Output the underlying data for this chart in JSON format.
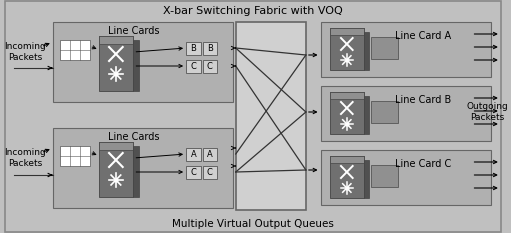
{
  "bg_color": "#c0c0c0",
  "title_top": "X-bar Switching Fabric with VOQ",
  "title_bottom": "Multiple Virtual Output Queues",
  "title_fontsize": 8,
  "label_fontsize": 7,
  "small_fontsize": 6,
  "line_card_labels": [
    "Line Cards",
    "Line Cards"
  ],
  "output_labels": [
    "Line Card A",
    "Line Card B",
    "Line Card C"
  ],
  "incoming_labels": [
    "Incoming\nPackets",
    "Incoming\nPackets"
  ],
  "outgoing_label": "Outgoing\nPackets",
  "outer_box_color": "#b8b8b8",
  "dark_box_color": "#808080",
  "medium_box_color": "#a0a0a0",
  "light_box_color": "#d0d0d0",
  "switch_fabric_color": "#d0d0d0",
  "voq_box_color": "#c8c8c8",
  "fig_width": 5.11,
  "fig_height": 2.33,
  "dpi": 100
}
